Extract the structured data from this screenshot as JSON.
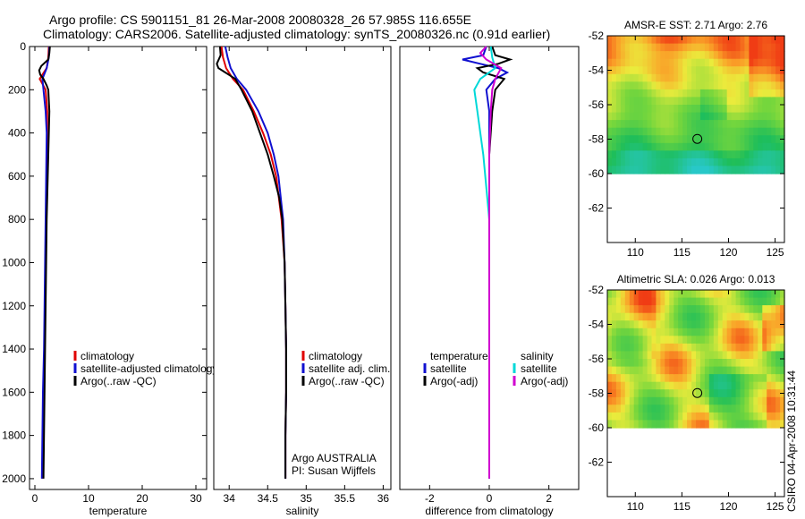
{
  "figure": {
    "title_line1": "Argo profile: CS 5901151_81 26-Mar-2008 20080328_26 57.985S 116.655E",
    "title_line2": "Climatology: CARS2006. Satellite-adjusted climatology: synTS_20080326.nc (0.91d earlier)",
    "footer_stamp": "CSIRO 04-Apr-2008 10:31:44"
  },
  "chart_data": [
    {
      "type": "line",
      "xlabel": "temperature",
      "ylabel": "",
      "xlim": [
        -1,
        32
      ],
      "ylim": [
        2050,
        0
      ],
      "xticks": [
        0,
        10,
        20,
        30
      ],
      "yticks": [
        0,
        200,
        400,
        600,
        800,
        1000,
        1200,
        1400,
        1600,
        1800,
        2000
      ],
      "legend": [
        "climatology",
        "satellite-adjusted climatology",
        "Argo(..raw -QC)"
      ],
      "series": [
        {
          "name": "climatology",
          "color": "#e00000",
          "depth": [
            0,
            50,
            100,
            150,
            200,
            300,
            400,
            600,
            800,
            1000,
            1200,
            1400,
            1600,
            1800,
            2000
          ],
          "values": [
            2.6,
            2.5,
            2.2,
            0.9,
            2.0,
            2.3,
            2.3,
            2.2,
            2.1,
            2.0,
            1.9,
            1.8,
            1.6,
            1.5,
            1.4
          ]
        },
        {
          "name": "satellite-adjusted climatology",
          "color": "#1010d0",
          "depth": [
            0,
            50,
            100,
            150,
            200,
            300,
            400,
            600,
            800,
            1000,
            1200,
            1400,
            1600,
            1800,
            2000
          ],
          "values": [
            2.7,
            2.6,
            2.2,
            1.4,
            1.6,
            2.0,
            2.2,
            2.1,
            2.0,
            1.9,
            1.8,
            1.7,
            1.5,
            1.4,
            1.3
          ]
        },
        {
          "name": "Argo(..raw -QC)",
          "color": "#000000",
          "depth": [
            0,
            30,
            60,
            90,
            110,
            130,
            150,
            180,
            200,
            250,
            300,
            400,
            600,
            800,
            1000,
            1200,
            1400,
            1600,
            1800,
            2000
          ],
          "values": [
            2.8,
            2.7,
            2.5,
            1.2,
            0.8,
            1.0,
            1.6,
            2.2,
            2.5,
            2.6,
            2.7,
            2.6,
            2.4,
            2.2,
            2.1,
            2.0,
            1.9,
            1.8,
            1.7,
            1.6
          ]
        }
      ]
    },
    {
      "type": "line",
      "xlabel": "salinity",
      "ylabel": "",
      "xlim": [
        33.8,
        36.1
      ],
      "ylim": [
        2050,
        0
      ],
      "xticks": [
        34,
        34.5,
        35,
        35.5,
        36
      ],
      "xticklabels": [
        "34",
        "34.5",
        "35",
        "35.5",
        "36"
      ],
      "legend": [
        "climatology",
        "satellite adj. clim.",
        "Argo(..raw -QC)"
      ],
      "annotation": [
        "Argo AUSTRALIA",
        "PI: Susan Wijffels"
      ],
      "series": [
        {
          "name": "climatology",
          "color": "#e00000",
          "depth": [
            0,
            50,
            100,
            150,
            200,
            300,
            400,
            500,
            600,
            800,
            1000,
            1200,
            1400,
            1600,
            1800,
            2000
          ],
          "values": [
            33.9,
            33.92,
            33.96,
            34.05,
            34.18,
            34.32,
            34.44,
            34.54,
            34.61,
            34.68,
            34.72,
            34.73,
            34.74,
            34.74,
            34.73,
            34.73
          ]
        },
        {
          "name": "satellite adj. clim.",
          "color": "#1010d0",
          "depth": [
            0,
            50,
            100,
            150,
            200,
            300,
            400,
            500,
            600,
            800,
            1000,
            1200,
            1400,
            1600,
            1800,
            2000
          ],
          "values": [
            33.95,
            33.98,
            34.02,
            34.1,
            34.22,
            34.38,
            34.5,
            34.58,
            34.64,
            34.7,
            34.72,
            34.73,
            34.74,
            34.74,
            34.73,
            34.73
          ]
        },
        {
          "name": "Argo(..raw -QC)",
          "color": "#000000",
          "depth": [
            0,
            40,
            80,
            100,
            120,
            150,
            200,
            300,
            400,
            500,
            600,
            700,
            800,
            1000,
            1200,
            1400,
            1600,
            1800,
            2000
          ],
          "values": [
            33.88,
            33.89,
            33.84,
            33.86,
            33.95,
            34.08,
            34.16,
            34.3,
            34.4,
            34.5,
            34.58,
            34.65,
            34.69,
            34.72,
            34.73,
            34.74,
            34.74,
            34.73,
            34.73
          ]
        }
      ]
    },
    {
      "type": "line",
      "xlabel": "difference from climatology",
      "ylabel": "",
      "xlim": [
        -3,
        3
      ],
      "ylim": [
        2050,
        0
      ],
      "xticks": [
        -2,
        0,
        2
      ],
      "legend_left_title": "temperature",
      "legend_right_title": "salinity",
      "legend_left": [
        "satellite",
        "Argo(-adj)"
      ],
      "legend_right": [
        "satellite",
        "Argo(-adj)"
      ],
      "series": [
        {
          "name": "temperature satellite",
          "color": "#1010d0",
          "depth": [
            0,
            40,
            60,
            80,
            100,
            120,
            150,
            200,
            300,
            500,
            800,
            1000,
            1500,
            2000
          ],
          "values": [
            -0.1,
            -0.2,
            -0.9,
            -0.3,
            0.3,
            0.6,
            0.2,
            -0.1,
            0.0,
            0.0,
            0.0,
            0.0,
            0.0,
            0.0
          ]
        },
        {
          "name": "temperature Argo(-adj)",
          "color": "#000000",
          "depth": [
            0,
            40,
            60,
            80,
            100,
            120,
            150,
            200,
            300,
            500,
            800,
            1000,
            1500,
            2000
          ],
          "values": [
            0.1,
            0.2,
            0.7,
            0.3,
            -0.4,
            -0.2,
            0.5,
            0.2,
            0.1,
            0.0,
            0.0,
            0.0,
            0.0,
            0.0
          ]
        },
        {
          "name": "salinity satellite",
          "color": "#00d8d8",
          "depth": [
            0,
            50,
            100,
            150,
            200,
            300,
            500,
            800,
            1000,
            1500,
            2000
          ],
          "values": [
            0.05,
            0.1,
            0.2,
            -0.3,
            -0.5,
            -0.4,
            -0.2,
            0.0,
            0.0,
            0.0,
            0.0
          ]
        },
        {
          "name": "salinity Argo(-adj)",
          "color": "#d000d0",
          "depth": [
            0,
            30,
            60,
            100,
            150,
            200,
            300,
            500,
            800,
            1000,
            1500,
            2000
          ],
          "values": [
            -0.1,
            -0.3,
            -0.1,
            0.4,
            0.2,
            0.1,
            0.05,
            0.0,
            0.0,
            0.0,
            0.0,
            0.0
          ]
        }
      ]
    },
    {
      "type": "heatmap",
      "title": "AMSR-E SST: 2.71 Argo: 2.76",
      "xlim": [
        107,
        126
      ],
      "ylim": [
        -64,
        -52
      ],
      "xticks": [
        110,
        115,
        120,
        125
      ],
      "yticks": [
        -52,
        -54,
        -56,
        -58,
        -60,
        -62
      ],
      "marker": {
        "lon": 116.655,
        "lat": -57.985
      },
      "data_extent_lat": [
        -60,
        -52
      ]
    },
    {
      "type": "heatmap",
      "title": "Altimetric SLA: 0.026 Argo: 0.013",
      "xlim": [
        107,
        126
      ],
      "ylim": [
        -64,
        -52
      ],
      "xticks": [
        110,
        115,
        120,
        125
      ],
      "yticks": [
        -52,
        -54,
        -56,
        -58,
        -60,
        -62
      ],
      "marker": {
        "lon": 116.655,
        "lat": -57.985
      },
      "data_extent_lat": [
        -60,
        -52
      ]
    }
  ]
}
